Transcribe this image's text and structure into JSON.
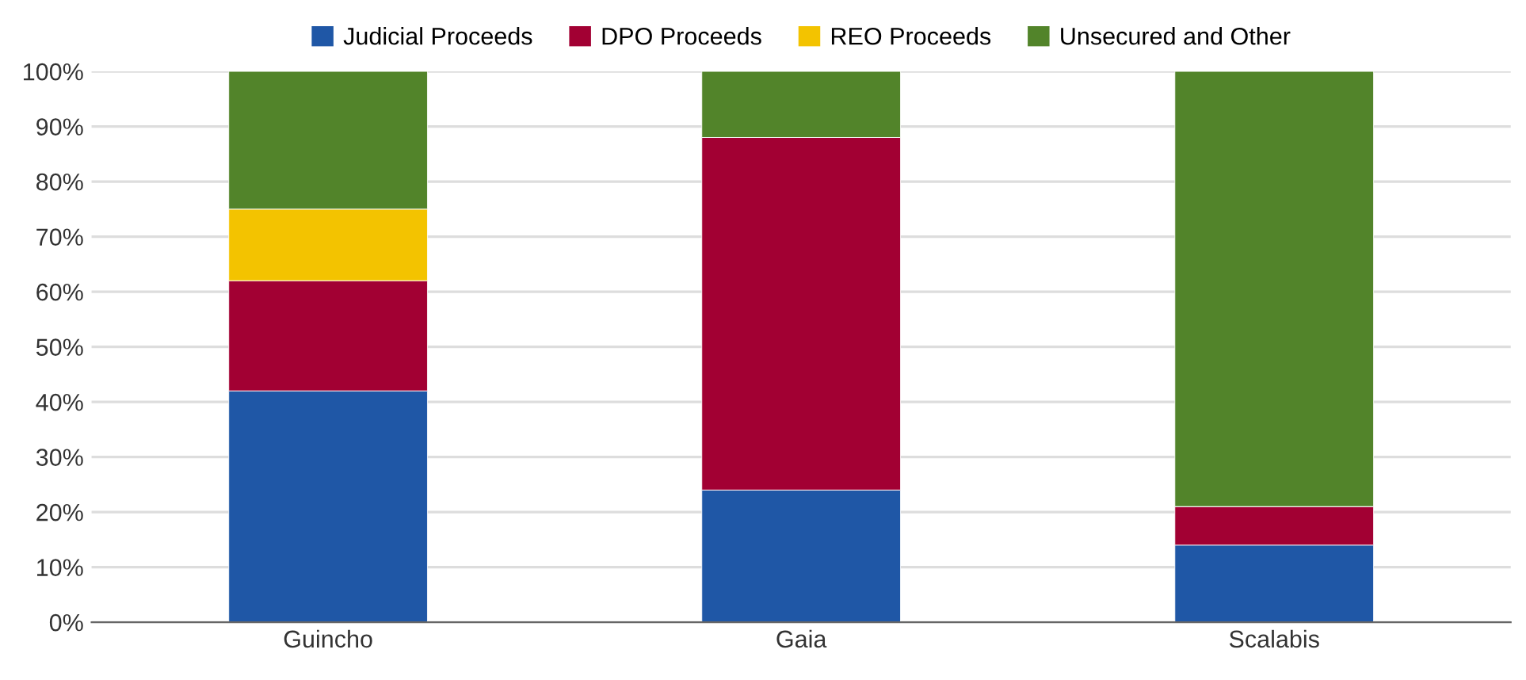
{
  "chart_data": {
    "type": "bar",
    "stacked": true,
    "categories": [
      "Guincho",
      "Gaia",
      "Scalabis"
    ],
    "series": [
      {
        "name": "Judicial Proceeds",
        "color": "#1f57a6",
        "values": [
          42,
          24,
          14
        ]
      },
      {
        "name": "DPO Proceeds",
        "color": "#a20033",
        "values": [
          20,
          64,
          7
        ]
      },
      {
        "name": "REO Proceeds",
        "color": "#f3c300",
        "values": [
          13,
          0,
          0
        ]
      },
      {
        "name": "Unsecured and Other",
        "color": "#52842a",
        "values": [
          25,
          12,
          79
        ]
      }
    ],
    "ylim": [
      0,
      100
    ],
    "yticks": [
      {
        "value": 0,
        "label": "0%"
      },
      {
        "value": 10,
        "label": "10%"
      },
      {
        "value": 20,
        "label": "20%"
      },
      {
        "value": 30,
        "label": "30%"
      },
      {
        "value": 40,
        "label": "40%"
      },
      {
        "value": 50,
        "label": "50%"
      },
      {
        "value": 60,
        "label": "60%"
      },
      {
        "value": 70,
        "label": "70%"
      },
      {
        "value": 80,
        "label": "80%"
      },
      {
        "value": 90,
        "label": "90%"
      },
      {
        "value": 100,
        "label": "100%"
      }
    ],
    "grid": "y",
    "legend": "top"
  }
}
